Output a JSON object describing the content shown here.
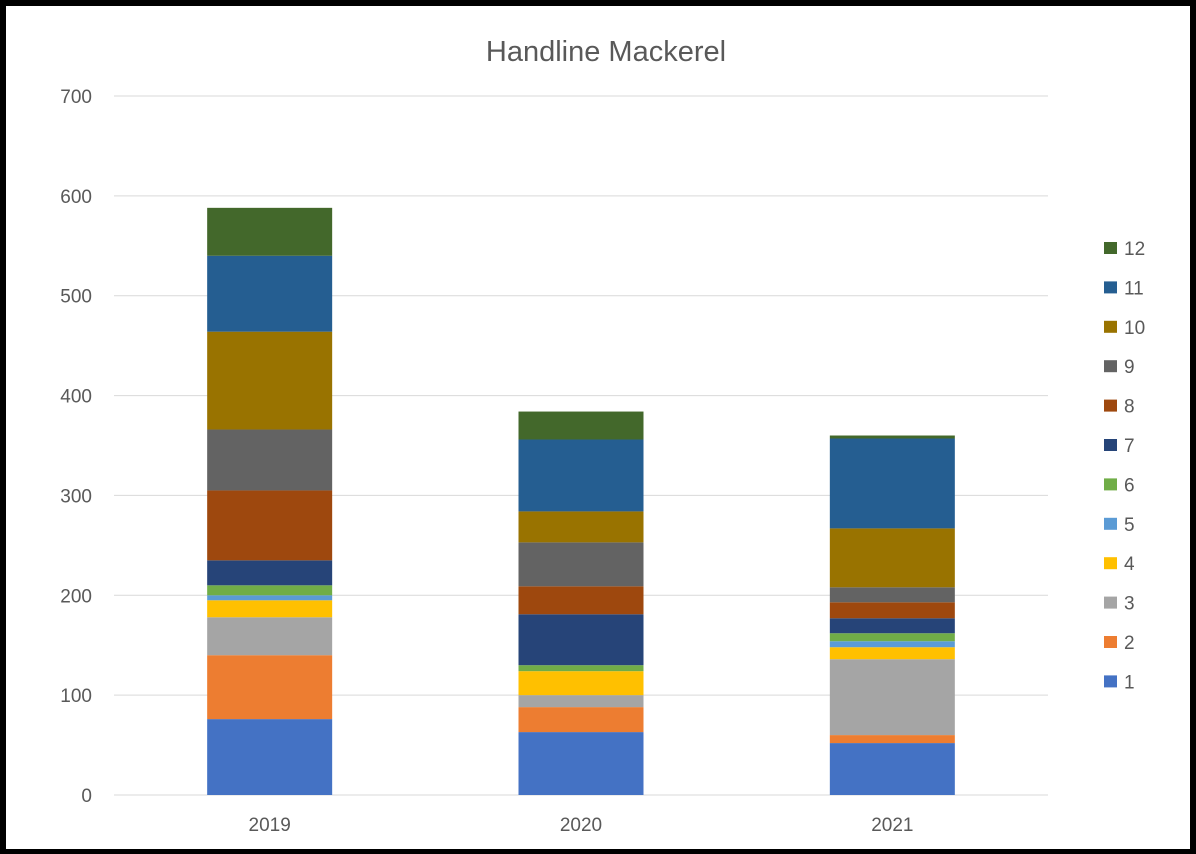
{
  "chart_data": {
    "type": "bar",
    "stacked": true,
    "title": "Handline Mackerel",
    "xlabel": "",
    "ylabel": "",
    "categories": [
      "2019",
      "2020",
      "2021"
    ],
    "ylim": [
      0,
      700
    ],
    "yticks": [
      0,
      100,
      200,
      300,
      400,
      500,
      600,
      700
    ],
    "grid": true,
    "legend_position": "right",
    "series": [
      {
        "name": "1",
        "color": "#4472C4",
        "values": [
          76,
          63,
          52
        ]
      },
      {
        "name": "2",
        "color": "#ED7D31",
        "values": [
          64,
          25,
          8
        ]
      },
      {
        "name": "3",
        "color": "#A5A5A5",
        "values": [
          38,
          12,
          76
        ]
      },
      {
        "name": "4",
        "color": "#FFC000",
        "values": [
          17,
          24,
          12
        ]
      },
      {
        "name": "5",
        "color": "#5B9BD5",
        "values": [
          5,
          0,
          6
        ]
      },
      {
        "name": "6",
        "color": "#70AD47",
        "values": [
          10,
          6,
          8
        ]
      },
      {
        "name": "7",
        "color": "#264478",
        "values": [
          25,
          51,
          15
        ]
      },
      {
        "name": "8",
        "color": "#9E480E",
        "values": [
          70,
          28,
          16
        ]
      },
      {
        "name": "9",
        "color": "#636363",
        "values": [
          61,
          44,
          15
        ]
      },
      {
        "name": "10",
        "color": "#997300",
        "values": [
          98,
          31,
          59
        ]
      },
      {
        "name": "11",
        "color": "#255E91",
        "values": [
          76,
          72,
          90
        ]
      },
      {
        "name": "12",
        "color": "#43682B",
        "values": [
          48,
          28,
          3
        ]
      }
    ]
  }
}
